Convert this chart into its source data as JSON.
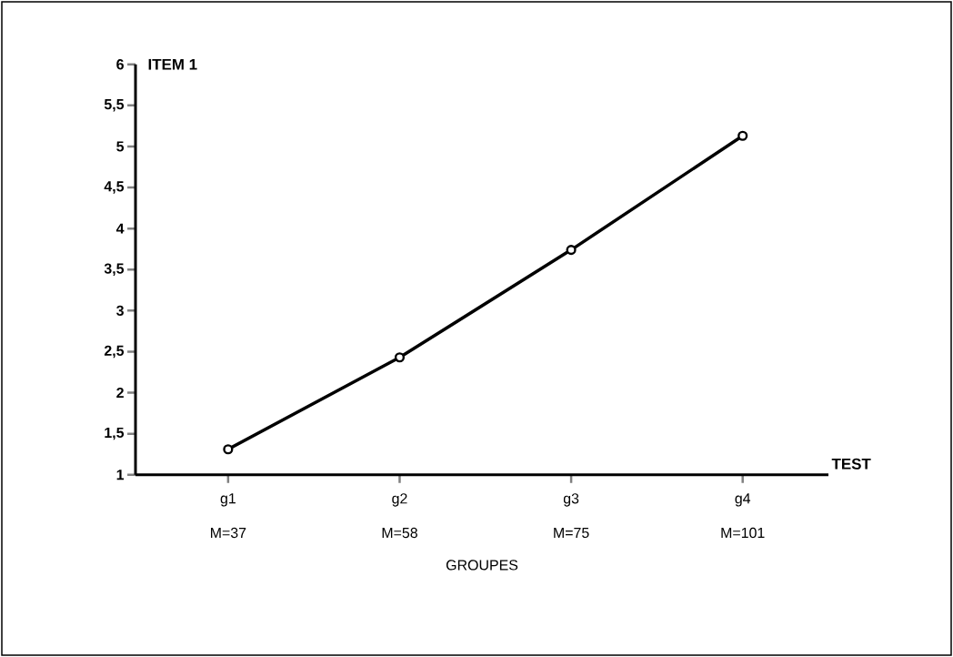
{
  "chart_data": {
    "type": "line",
    "ylabel": "ITEM 1",
    "xlabel": "GROUPES",
    "annotations": [
      "TEST",
      "M=37",
      "M=58",
      "M=75",
      "M=101"
    ],
    "categories": [
      "g1",
      "g2",
      "g3",
      "g4"
    ],
    "series": [
      {
        "color": "#000000",
        "values": [
          1.31,
          2.43,
          3.74,
          5.13
        ]
      }
    ],
    "ylim": [
      1,
      6
    ],
    "yticks": [
      1,
      {
        "value": 1.5,
        "label": "1,5"
      },
      2,
      {
        "value": 2.5,
        "label": "2,5"
      },
      3,
      {
        "value": 3.5,
        "label": "3,5"
      },
      4,
      {
        "value": 4.5,
        "label": "4,5"
      },
      5,
      {
        "value": 5.5,
        "label": "5,5"
      },
      6
    ],
    "marker": "circle",
    "line_style": "solid",
    "grid": false
  }
}
